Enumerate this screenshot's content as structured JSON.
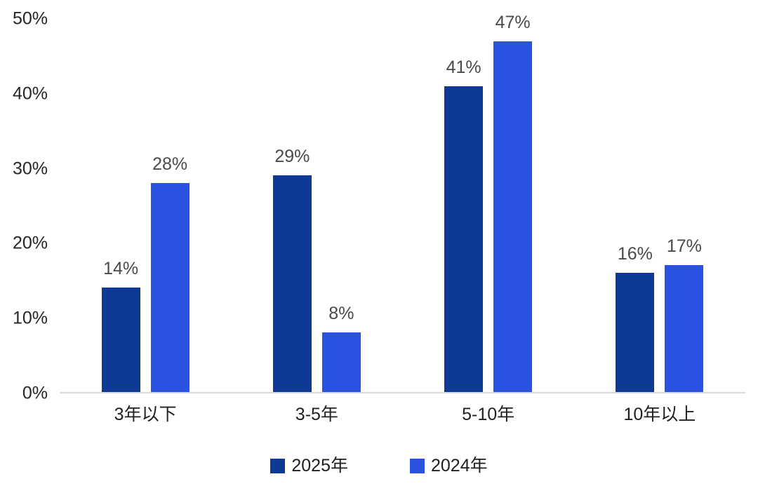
{
  "chart_data": {
    "type": "bar",
    "title": "",
    "categories": [
      "3年以下",
      "3-5年",
      "5-10年",
      "10年以上"
    ],
    "series": [
      {
        "name": "2025年",
        "color": "#0e3a96",
        "values": [
          14,
          29,
          41,
          16
        ],
        "data_labels": [
          "14%",
          "29%",
          "41%",
          "16%"
        ]
      },
      {
        "name": "2024年",
        "color": "#2a52e0",
        "values": [
          28,
          8,
          47,
          17
        ],
        "data_labels": [
          "28%",
          "8%",
          "47%",
          "17%"
        ]
      }
    ],
    "xlabel": "",
    "ylabel": "",
    "ylim": [
      0,
      50
    ],
    "yticks": [
      {
        "value": 0,
        "label": "0%"
      },
      {
        "value": 10,
        "label": "10%"
      },
      {
        "value": 20,
        "label": "20%"
      },
      {
        "value": 30,
        "label": "30%"
      },
      {
        "value": 40,
        "label": "40%"
      },
      {
        "value": 50,
        "label": "50%"
      }
    ],
    "grid": false,
    "legend_position": "bottom"
  },
  "colors": {
    "series_2025": "#0e3a96",
    "series_2024": "#2a52e0",
    "axis_line": "#d9d9d9",
    "value_label": "#4a4a4a",
    "tick_label": "#262626",
    "background": "#ffffff"
  }
}
